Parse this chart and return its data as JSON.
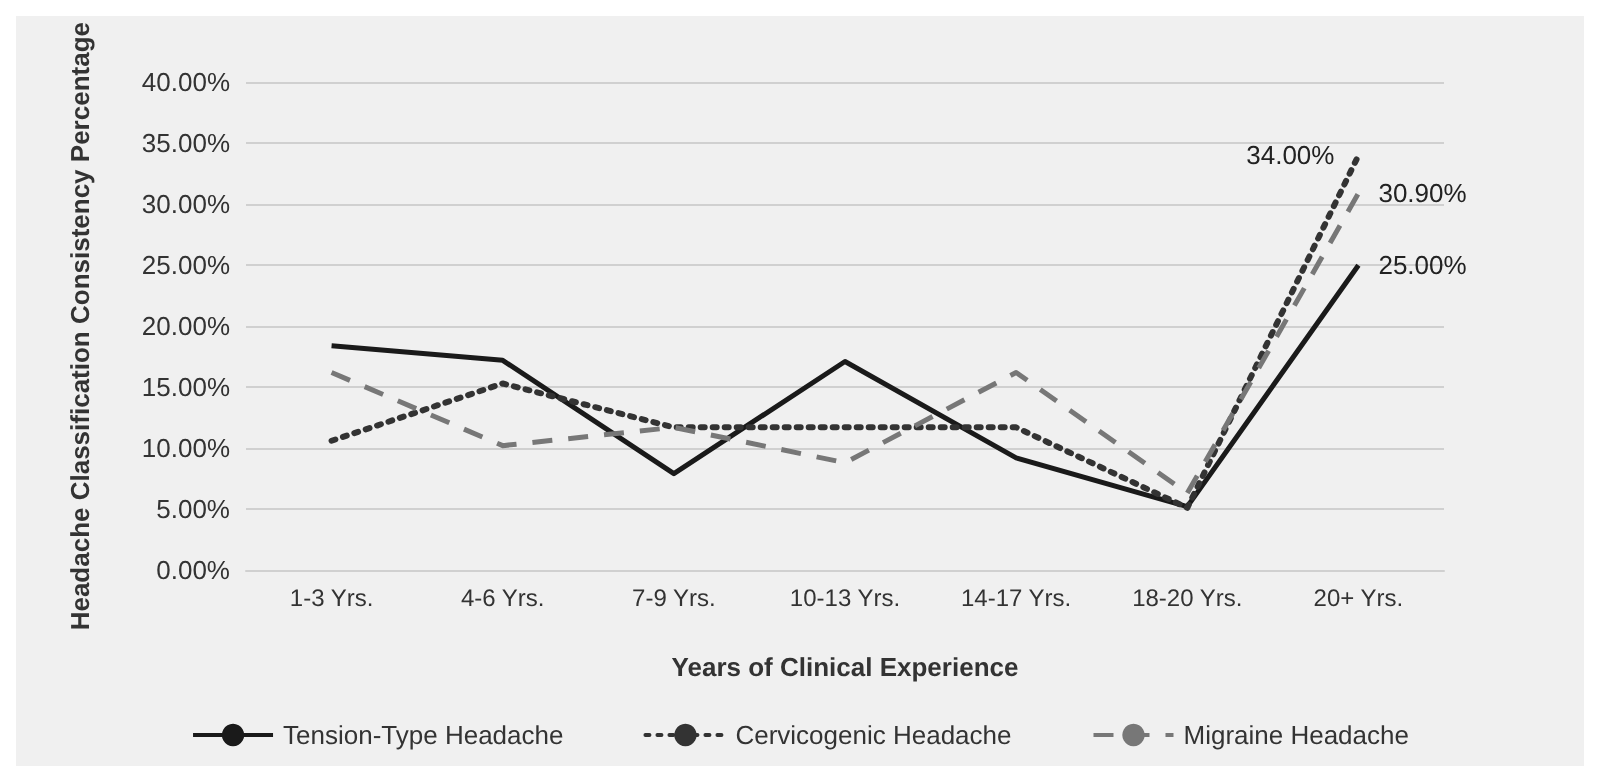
{
  "chart_data": {
    "type": "line",
    "xlabel": "Years of Clinical Experience",
    "ylabel": "Headache Classification Consistency Percentage",
    "categories": [
      "1-3 Yrs.",
      "4-6 Yrs.",
      "7-9 Yrs.",
      "10-13 Yrs.",
      "14-17 Yrs.",
      "18-20 Yrs.",
      "20+ Yrs."
    ],
    "series": [
      {
        "name": "Tension-Type Headache",
        "color": "#1a1a1a",
        "line_style": "solid",
        "values": [
          18.4,
          17.2,
          7.9,
          17.1,
          9.2,
          5.2,
          25
        ],
        "value_labels": [
          null,
          null,
          null,
          null,
          null,
          null,
          "25.00%"
        ]
      },
      {
        "name": "Cervicogenic Headache",
        "color": "#333333",
        "line_style": "dotted",
        "values": [
          10.6,
          15.3,
          11.7,
          11.7,
          11.7,
          5.1,
          34
        ],
        "value_labels": [
          null,
          null,
          null,
          null,
          null,
          null,
          "34.00%"
        ]
      },
      {
        "name": "Migraine Headache",
        "color": "#777777",
        "line_style": "dashed",
        "values": [
          16.2,
          10.2,
          11.7,
          8.8,
          16.2,
          6.3,
          30.9
        ],
        "value_labels": [
          null,
          null,
          null,
          null,
          null,
          null,
          "30.90%"
        ]
      }
    ],
    "ylim": [
      0,
      40
    ],
    "yticks": [
      {
        "value": 0,
        "label": "0.00%"
      },
      {
        "value": 5,
        "label": "5.00%"
      },
      {
        "value": 10,
        "label": "10.00%"
      },
      {
        "value": 15,
        "label": "15.00%"
      },
      {
        "value": 20,
        "label": "20.00%"
      },
      {
        "value": 25,
        "label": "25.00%"
      },
      {
        "value": 30,
        "label": "30.00%"
      },
      {
        "value": 35,
        "label": "35.00%"
      },
      {
        "value": 40,
        "label": "40.00%"
      }
    ],
    "grid": "y",
    "legend": "bottom",
    "marker": "none"
  }
}
